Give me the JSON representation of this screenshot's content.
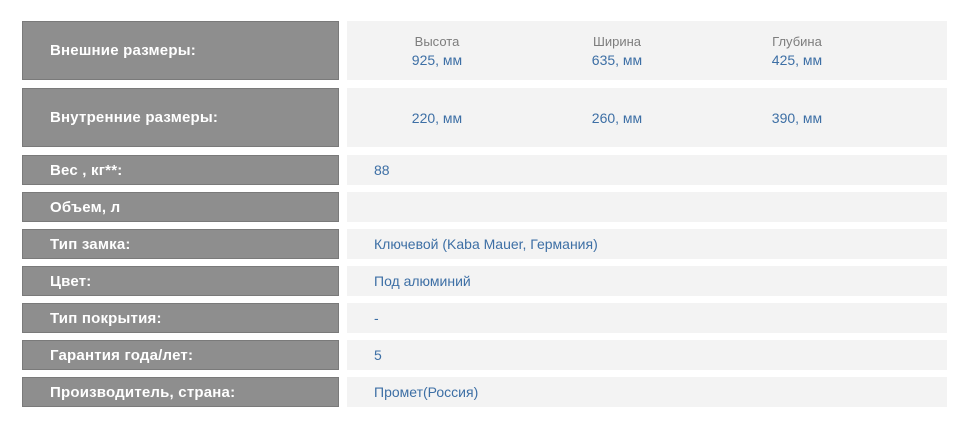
{
  "colors": {
    "label_bg": "#8e8e8e",
    "label_border": "#7a7a7a",
    "label_text": "#ffffff",
    "value_bg": "#f3f3f3",
    "value_text": "#3d6fa5",
    "dim_header_text": "#7d7d7d",
    "page_bg": "#ffffff"
  },
  "rows": [
    {
      "label": "Внешние размеры:",
      "cols": [
        {
          "header": "Высота",
          "value": "925, мм"
        },
        {
          "header": "Ширина",
          "value": "635, мм"
        },
        {
          "header": "Глубина",
          "value": "425, мм"
        }
      ]
    },
    {
      "label": "Внутренние размеры:",
      "cols": [
        {
          "value": "220, мм"
        },
        {
          "value": "260, мм"
        },
        {
          "value": "390, мм"
        }
      ]
    },
    {
      "label": "Вес , кг**:",
      "value": "88"
    },
    {
      "label": "Объем, л",
      "value": ""
    },
    {
      "label": "Тип замка:",
      "value": "Ключевой (Kaba Mauer, Германия)"
    },
    {
      "label": "Цвет:",
      "value": "Под алюминий"
    },
    {
      "label": "Тип покрытия:",
      "value": "-"
    },
    {
      "label": "Гарантия года/лет:",
      "value": "5"
    },
    {
      "label": "Производитель, страна:",
      "value": "Промет(Россия)"
    }
  ]
}
